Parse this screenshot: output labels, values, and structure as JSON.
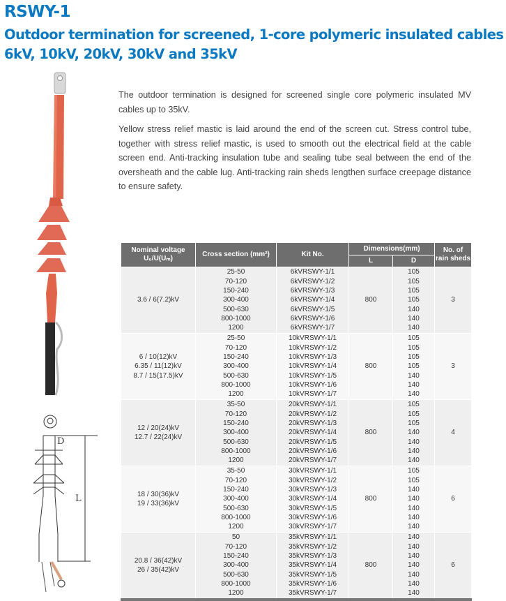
{
  "header": {
    "product_code": "RSWY-1",
    "subtitle": "Outdoor termination for screened, 1-core polymeric insulated cables",
    "voltages": "6kV, 10kV, 20kV, 30kV and 35kV"
  },
  "description": [
    "The outdoor termination is designed for screened single core polymeric insulated MV cables up to 35kV.",
    "Yellow stress relief mastic is laid around the end of the screen cut. Stress control tube, together with stress relief mastic, is used to smooth out the electrical field at the cable screen end. Anti-tracking insulation tube and sealing tube seal between the end of the oversheath and the cable lug. Anti-tracking rain sheds lengthen surface creepage distance to ensure safety."
  ],
  "drawing_labels": {
    "diameter": "D",
    "length": "L"
  },
  "table": {
    "headers": {
      "voltage_line1": "Nominal voltage",
      "voltage_line2": "U₀/U(Uₘ)",
      "cross_section": "Cross section (mm²)",
      "kit": "Kit No.",
      "dimensions": "Dimensions(mm)",
      "L": "L",
      "D": "D",
      "sheds_line1": "No. of",
      "sheds_line2": "rain sheds"
    },
    "groups": [
      {
        "voltages": [
          "3.6 / 6(7.2)kV"
        ],
        "cross_sections": [
          "25-50",
          "70-120",
          "150-240",
          "300-400",
          "500-630",
          "800-1000",
          "1200"
        ],
        "kits": [
          "6kVRSWY-1/1",
          "6kVRSWY-1/2",
          "6kVRSWY-1/3",
          "6kVRSWY-1/4",
          "6kVRSWY-1/5",
          "6kVRSWY-1/6",
          "6kVRSWY-1/7"
        ],
        "L": "800",
        "D": [
          "105",
          "105",
          "105",
          "105",
          "140",
          "140",
          "140"
        ],
        "sheds": "3"
      },
      {
        "voltages": [
          "6 / 10(12)kV",
          "6.35 / 11(12)kV",
          "8.7 / 15(17.5)kV"
        ],
        "cross_sections": [
          "25-50",
          "70-120",
          "150-240",
          "300-400",
          "500-630",
          "800-1000",
          "1200"
        ],
        "kits": [
          "10kVRSWY-1/1",
          "10kVRSWY-1/2",
          "10kVRSWY-1/3",
          "10kVRSWY-1/4",
          "10kVRSWY-1/5",
          "10kVRSWY-1/6",
          "10kVRSWY-1/7"
        ],
        "L": "800",
        "D": [
          "105",
          "105",
          "105",
          "105",
          "140",
          "140",
          "140"
        ],
        "sheds": "3"
      },
      {
        "voltages": [
          "12 / 20(24)kV",
          "12.7 / 22(24)kV"
        ],
        "cross_sections": [
          "35-50",
          "70-120",
          "150-240",
          "300-400",
          "500-630",
          "800-1000",
          "1200"
        ],
        "kits": [
          "20kVRSWY-1/1",
          "20kVRSWY-1/2",
          "20kVRSWY-1/3",
          "20kVRSWY-1/4",
          "20kVRSWY-1/5",
          "20kVRSWY-1/6",
          "20kVRSWY-1/7"
        ],
        "L": "800",
        "D": [
          "105",
          "105",
          "105",
          "140",
          "140",
          "140",
          "140"
        ],
        "sheds": "4"
      },
      {
        "voltages": [
          "18 / 30(36)kV",
          "19 / 33(36)kV"
        ],
        "cross_sections": [
          "35-50",
          "70-120",
          "150-240",
          "300-400",
          "500-630",
          "800-1000",
          "1200"
        ],
        "kits": [
          "30kVRSWY-1/1",
          "30kVRSWY-1/2",
          "30kVRSWY-1/3",
          "30kVRSWY-1/4",
          "30kVRSWY-1/5",
          "30kVRSWY-1/6",
          "30kVRSWY-1/7"
        ],
        "L": "800",
        "D": [
          "105",
          "105",
          "140",
          "140",
          "140",
          "140",
          "140"
        ],
        "sheds": "6"
      },
      {
        "voltages": [
          "20.8 / 36(42)kV",
          "26 / 35(42)kV"
        ],
        "cross_sections": [
          "50",
          "70-120",
          "150-240",
          "300-400",
          "500-630",
          "800-1000",
          "1200"
        ],
        "kits": [
          "35kVRSWY-1/1",
          "35kVRSWY-1/2",
          "35kVRSWY-1/3",
          "35kVRSWY-1/4",
          "35kVRSWY-1/5",
          "35kVRSWY-1/6",
          "35kVRSWY-1/7"
        ],
        "L": "800",
        "D": [
          "140",
          "140",
          "140",
          "140",
          "140",
          "140",
          "140"
        ],
        "sheds": "6"
      }
    ]
  },
  "colors": {
    "title": "#0b79c1",
    "table_header": "#6e6e6e",
    "termination": "#e0644a"
  }
}
